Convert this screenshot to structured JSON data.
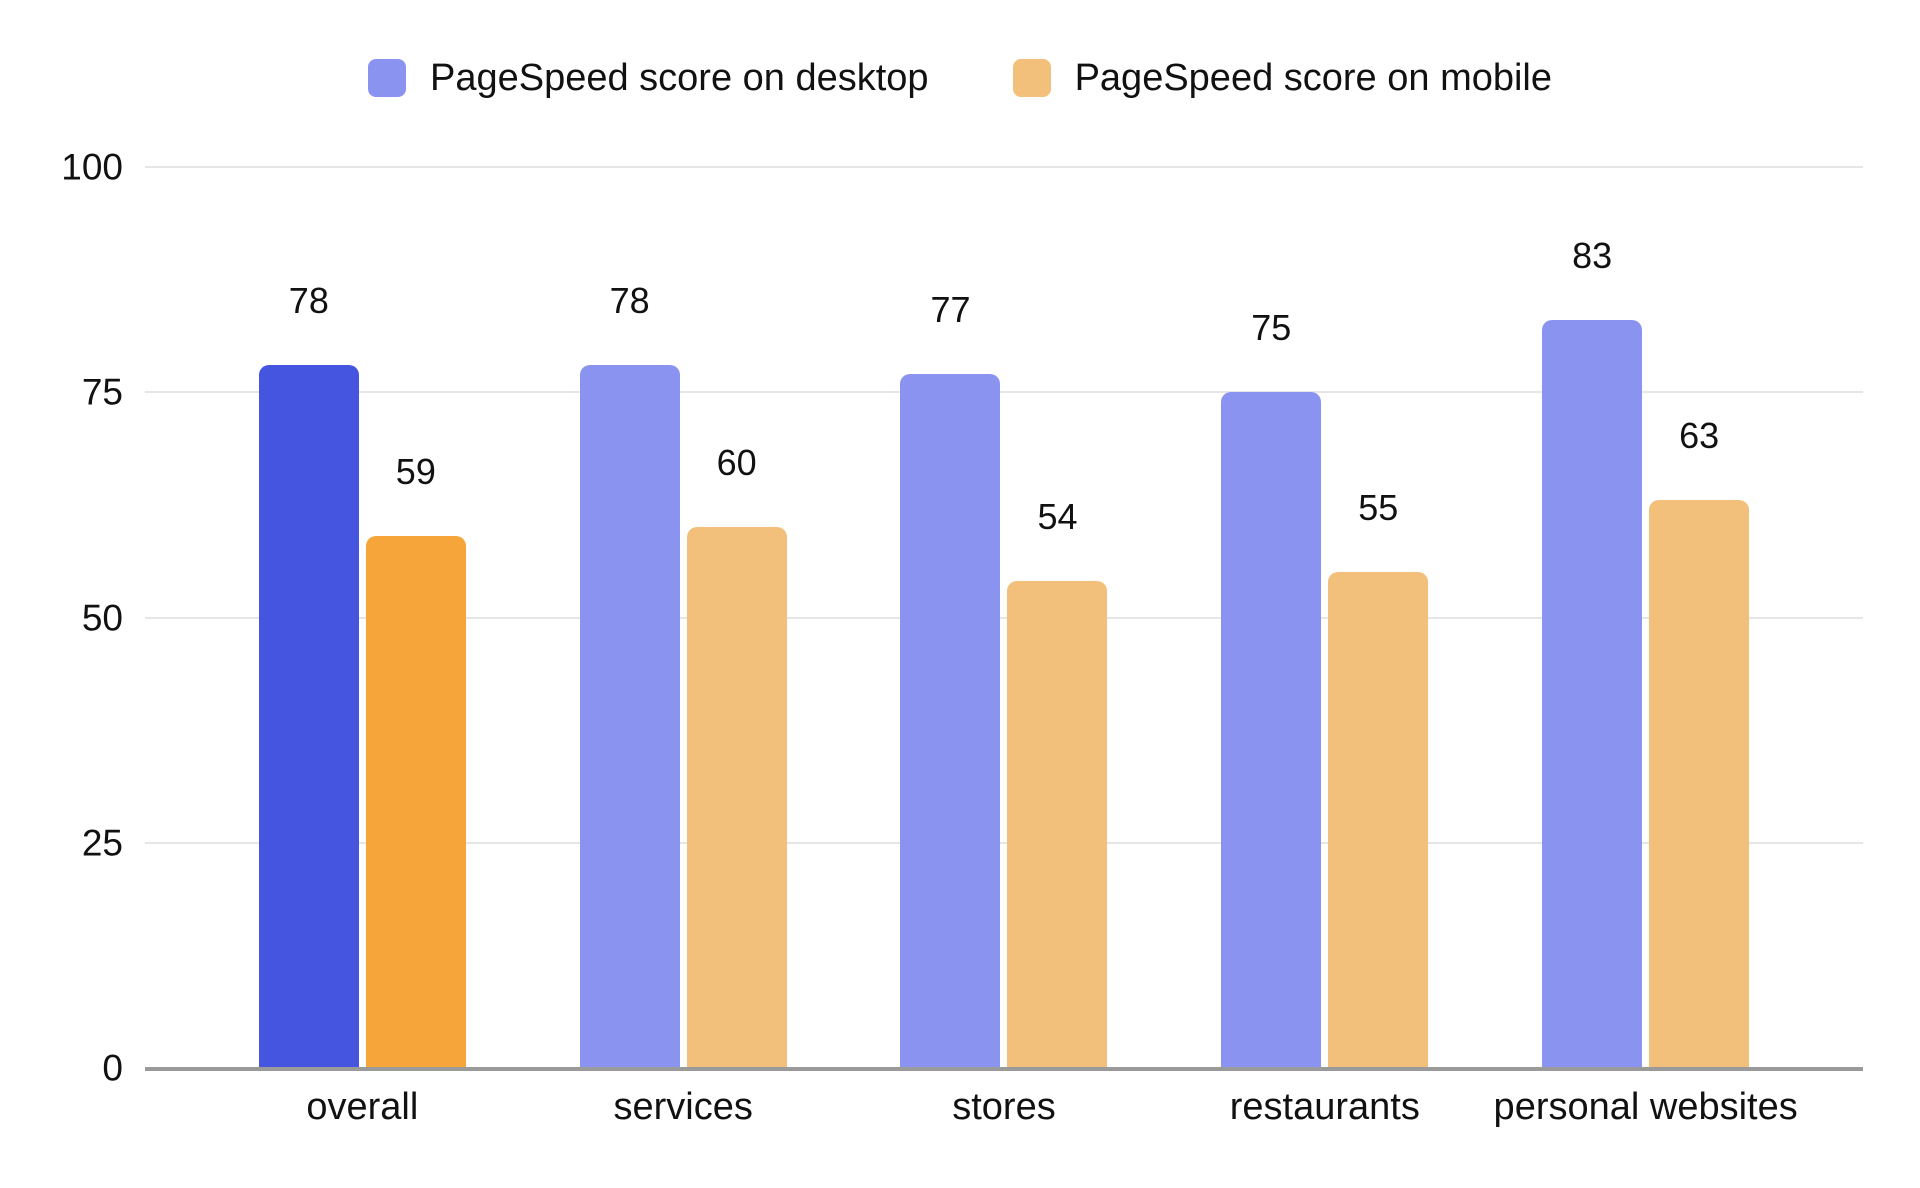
{
  "legend": {
    "desktop_label": "PageSpeed score on desktop",
    "mobile_label": "PageSpeed score on mobile"
  },
  "chart_data": {
    "type": "bar",
    "title": "",
    "categories": [
      "overall",
      "services",
      "stores",
      "restaurants",
      "personal websites"
    ],
    "series": [
      {
        "name": "PageSpeed score on desktop",
        "values": [
          78,
          78,
          77,
          75,
          83
        ],
        "color": "#8b93f1",
        "highlight_color": "#4655df"
      },
      {
        "name": "PageSpeed score on mobile",
        "values": [
          59,
          60,
          54,
          55,
          63
        ],
        "color": "#f3c07b",
        "highlight_color": "#f6a53b"
      }
    ],
    "highlight_category_index": 0,
    "yticks": [
      0,
      25,
      50,
      75,
      100
    ],
    "ylim": [
      0,
      100
    ],
    "grid": true,
    "legend_position": "top",
    "colors": {
      "gridline": "#e6e6e6",
      "axis_line": "#9a9a9a",
      "text": "#111111"
    }
  }
}
